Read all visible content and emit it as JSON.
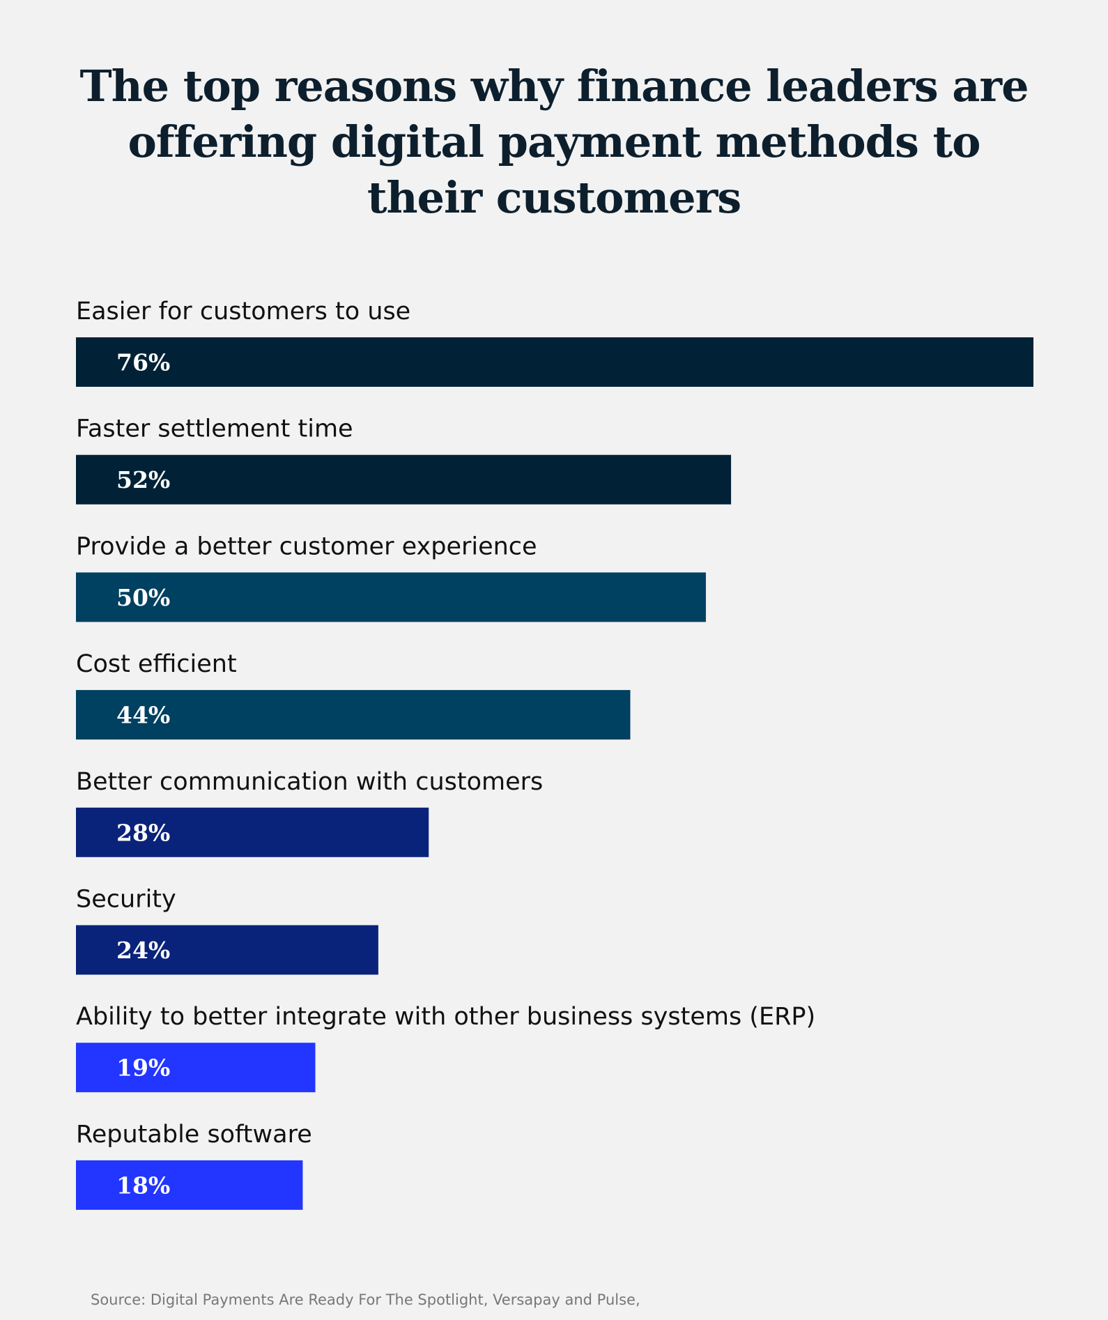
{
  "title": "The top reasons why finance leaders are offering digital payment methods to their customers",
  "source": "Source: Digital Payments Are Ready For The Spotlight, Versapay and Pulse,",
  "chart_data": {
    "type": "bar",
    "orientation": "horizontal",
    "title": "The top reasons why finance leaders are offering digital payment methods to their customers",
    "categories": [
      "Easier for customers to use",
      "Faster settlement time",
      "Provide a better customer experience",
      "Cost efficient",
      "Better communication with customers",
      "Security",
      "Ability to better integrate with other business systems (ERP)",
      "Reputable software"
    ],
    "values": [
      76,
      52,
      50,
      44,
      28,
      24,
      19,
      18
    ],
    "value_labels": [
      "76%",
      "52%",
      "50%",
      "44%",
      "28%",
      "24%",
      "19%",
      "18%"
    ],
    "colors": [
      "#012236",
      "#012236",
      "#004060",
      "#004060",
      "#0a237a",
      "#0a237a",
      "#2236ff",
      "#2236ff"
    ],
    "unit": "%",
    "xlim": [
      0,
      76
    ],
    "grid": false,
    "legend": "none"
  }
}
